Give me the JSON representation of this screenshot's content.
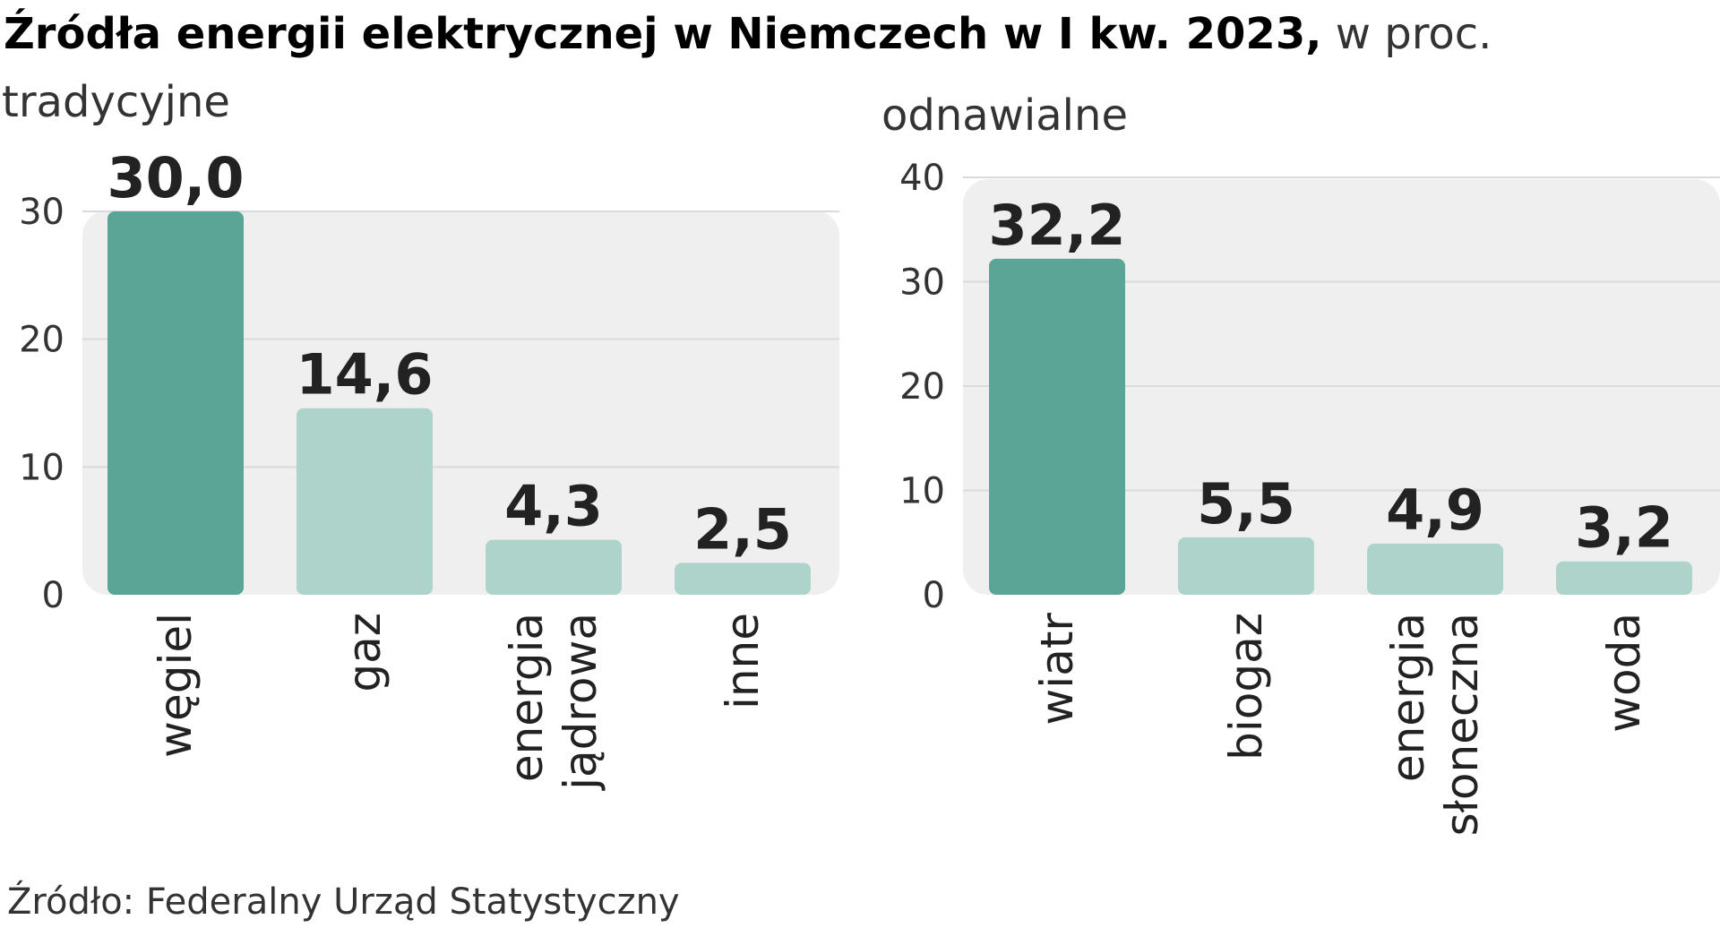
{
  "title": {
    "bold": "Źródła energii elektrycznej w Niemczech w I kw. 2023,",
    "unit": " w proc."
  },
  "source": "Źródło: Federalny Urząd Statystyczny",
  "colors": {
    "highlight": "#5ba596",
    "normal": "#aed3cb",
    "panel": "#efefef",
    "grid": "#d9d9d9"
  },
  "chart_data": [
    {
      "type": "bar",
      "title": "tradycyjne",
      "categories": [
        [
          "węgiel"
        ],
        [
          "gaz"
        ],
        [
          "energia",
          "jądrowa"
        ],
        [
          "inne"
        ]
      ],
      "values": [
        30.0,
        14.6,
        4.3,
        2.5
      ],
      "value_labels": [
        "30,0",
        "14,6",
        "4,3",
        "2,5"
      ],
      "highlight_index": 0,
      "ylim": [
        0,
        30
      ],
      "yticks": [
        0,
        10,
        20,
        30
      ],
      "grid": true
    },
    {
      "type": "bar",
      "title": "odnawialne",
      "categories": [
        [
          "wiatr"
        ],
        [
          "biogaz"
        ],
        [
          "energia",
          "słoneczna"
        ],
        [
          "woda"
        ]
      ],
      "values": [
        32.2,
        5.5,
        4.9,
        3.2
      ],
      "value_labels": [
        "32,2",
        "5,5",
        "4,9",
        "3,2"
      ],
      "highlight_index": 0,
      "ylim": [
        0,
        40
      ],
      "yticks": [
        0,
        10,
        20,
        30,
        40
      ],
      "grid": true
    }
  ]
}
